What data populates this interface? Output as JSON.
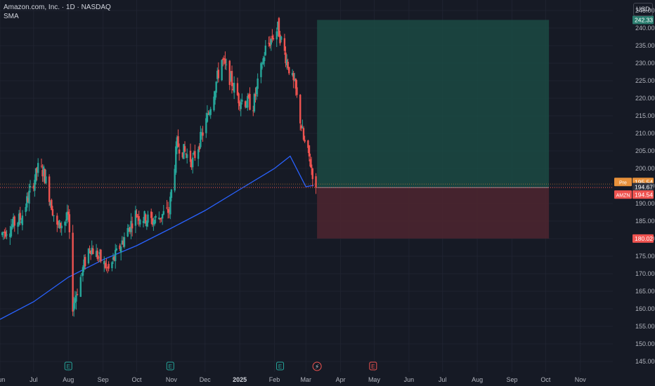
{
  "header": {
    "symbol_line": "Amazon.com, Inc. · 1D · NASDAQ",
    "indicator": "SMA",
    "currency_button": "USD"
  },
  "colors": {
    "background": "#161a25",
    "grid": "#1f2330",
    "up": "#26a69a",
    "down": "#ef5350",
    "sma": "#2962ff",
    "target_zone": "#1b4a43",
    "stop_zone": "#4a2530",
    "axis_text": "#b2b5be"
  },
  "chart_data": {
    "type": "candlestick",
    "title": "Amazon.com, Inc. · 1D · NASDAQ",
    "y_axis": {
      "ticks": [
        145,
        150,
        155,
        160,
        165,
        170,
        175,
        180,
        185,
        190,
        195,
        200,
        205,
        210,
        215,
        220,
        225,
        230,
        235,
        240,
        245
      ],
      "tick_labels": [
        "145.00",
        "150.00",
        "155.00",
        "160.00",
        "165.00",
        "170.00",
        "175.00",
        "180.00",
        "185.00",
        "190.00",
        "195.00",
        "200.00",
        "205.00",
        "210.00",
        "215.00",
        "220.00",
        "225.00",
        "230.00",
        "235.00",
        "240.00",
        "245.00"
      ],
      "range": [
        142,
        248
      ]
    },
    "x_axis": {
      "labels": [
        "Jun",
        "Jul",
        "Aug",
        "Sep",
        "Oct",
        "Nov",
        "Dec",
        "2025",
        "Feb",
        "Mar",
        "Apr",
        "May",
        "Jun",
        "Jul",
        "Aug",
        "Sep",
        "Oct",
        "Nov"
      ],
      "range": [
        "2024-06-01",
        "2025-11-30"
      ]
    },
    "series": [
      {
        "name": "AMZN",
        "kind": "ohlc_approx",
        "anchors": [
          {
            "date": "2024-06-01",
            "close": 181
          },
          {
            "date": "2024-06-20",
            "close": 186
          },
          {
            "date": "2024-07-05",
            "close": 200
          },
          {
            "date": "2024-07-10",
            "close": 199
          },
          {
            "date": "2024-07-22",
            "close": 183
          },
          {
            "date": "2024-08-01",
            "close": 186
          },
          {
            "date": "2024-08-05",
            "close": 161
          },
          {
            "date": "2024-08-20",
            "close": 178
          },
          {
            "date": "2024-09-06",
            "close": 171
          },
          {
            "date": "2024-09-30",
            "close": 187
          },
          {
            "date": "2024-10-15",
            "close": 185
          },
          {
            "date": "2024-10-30",
            "close": 188
          },
          {
            "date": "2024-11-06",
            "close": 207
          },
          {
            "date": "2024-11-20",
            "close": 202
          },
          {
            "date": "2024-12-01",
            "close": 212
          },
          {
            "date": "2024-12-16",
            "close": 231
          },
          {
            "date": "2024-12-31",
            "close": 220
          },
          {
            "date": "2025-01-13",
            "close": 218
          },
          {
            "date": "2025-01-24",
            "close": 234
          },
          {
            "date": "2025-02-04",
            "close": 240
          },
          {
            "date": "2025-02-10",
            "close": 233
          },
          {
            "date": "2025-02-20",
            "close": 222
          },
          {
            "date": "2025-02-27",
            "close": 208
          },
          {
            "date": "2025-03-04",
            "close": 203
          },
          {
            "date": "2025-03-10",
            "close": 194.54
          }
        ]
      },
      {
        "name": "SMA",
        "kind": "line",
        "points": [
          {
            "date": "2024-06-01",
            "value": 157
          },
          {
            "date": "2024-07-01",
            "value": 162
          },
          {
            "date": "2024-08-01",
            "value": 169
          },
          {
            "date": "2024-09-01",
            "value": 174
          },
          {
            "date": "2024-10-01",
            "value": 178
          },
          {
            "date": "2024-11-01",
            "value": 183
          },
          {
            "date": "2024-12-01",
            "value": 188
          },
          {
            "date": "2025-01-01",
            "value": 194
          },
          {
            "date": "2025-02-01",
            "value": 200
          },
          {
            "date": "2025-02-15",
            "value": 203.5
          },
          {
            "date": "2025-03-01",
            "value": 194.8
          },
          {
            "date": "2025-03-08",
            "value": 195.2
          }
        ]
      }
    ],
    "price_labels": [
      {
        "name": "target",
        "text": "242.33",
        "value": 242.33,
        "color": "#2a7d6f"
      },
      {
        "name": "pre-market",
        "prefix": "Pre",
        "text": "195.54",
        "value": 195.54,
        "color": "#e8913b"
      },
      {
        "name": "sma-value",
        "text": "194.67",
        "value": 194.67,
        "color": "#2e323e"
      },
      {
        "name": "last-price",
        "prefix": "AMZN",
        "text": "194.54",
        "value": 194.54,
        "color": "#ef5350"
      },
      {
        "name": "stop",
        "text": "180.02",
        "value": 180.02,
        "color": "#ef5350"
      }
    ],
    "position_tool": {
      "entry": 194.54,
      "target": 242.33,
      "stop": 180.02,
      "start_date": "2025-03-11",
      "end_date": "2025-10-04"
    },
    "events": [
      {
        "date": "2024-08-01",
        "label": "E"
      },
      {
        "date": "2024-10-31",
        "label": "E"
      },
      {
        "date": "2025-02-06",
        "label": "E"
      },
      {
        "date": "2025-03-11",
        "label": "⚡"
      },
      {
        "date": "2025-04-30",
        "label": "E"
      }
    ]
  }
}
